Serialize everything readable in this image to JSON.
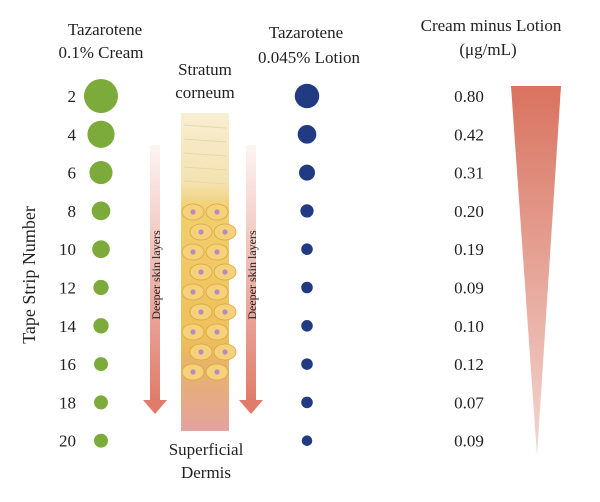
{
  "chart_data": {
    "type": "scatter",
    "ylabel": "Tape Strip Number",
    "categories": [
      "2",
      "4",
      "6",
      "8",
      "10",
      "12",
      "14",
      "16",
      "18",
      "20"
    ],
    "series": [
      {
        "name": "Tazarotene 0.1% Cream",
        "name_line1": "Tazarotene",
        "name_line2": "0.1% Cream",
        "color": "#7cab3c",
        "relative_size": [
          1.0,
          0.8,
          0.68,
          0.55,
          0.52,
          0.45,
          0.45,
          0.41,
          0.41,
          0.41
        ]
      },
      {
        "name": "Tazarotene 0.045% Lotion",
        "name_line1": "Tazarotene",
        "name_line2": "0.045% Lotion",
        "color": "#213b82",
        "relative_size": [
          0.72,
          0.55,
          0.47,
          0.39,
          0.34,
          0.34,
          0.34,
          0.34,
          0.34,
          0.31
        ]
      }
    ],
    "difference": {
      "title_line1": "Cream minus Lotion",
      "title_line2": "(μg/mL)",
      "values": [
        0.8,
        0.42,
        0.31,
        0.2,
        0.19,
        0.09,
        0.1,
        0.12,
        0.07,
        0.09
      ],
      "gradient_colors": [
        "#d9735f",
        "#f3d7d2"
      ]
    },
    "annotations": {
      "stratum_line1": "Stratum",
      "stratum_line2": "corneum",
      "dermis_line1": "Superficial",
      "dermis_line2": "Dermis",
      "arrow_label": "Deeper skin layers",
      "arrow_color": "#e07c6a"
    }
  }
}
